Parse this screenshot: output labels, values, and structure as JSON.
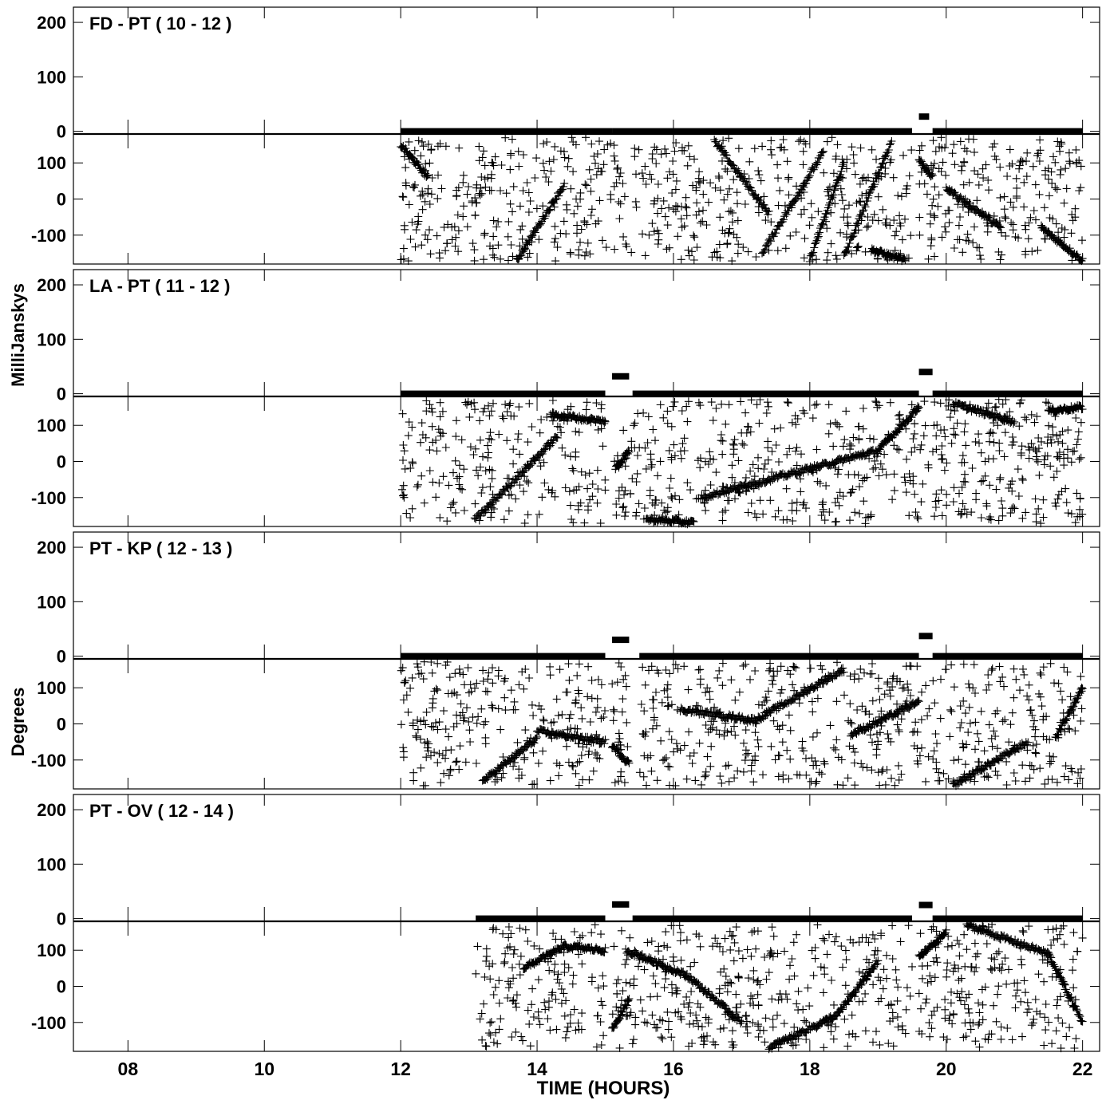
{
  "chart_data": {
    "type": "scatter",
    "xlabel": "TIME (HOURS)",
    "ylabel_amplitude": "MilliJanskys",
    "ylabel_phase": "Degrees",
    "xlim": [
      7.2,
      22.25
    ],
    "x_ticks": [
      8,
      10,
      12,
      14,
      16,
      18,
      20,
      22
    ],
    "x_tick_labels": [
      "08",
      "10",
      "12",
      "14",
      "16",
      "18",
      "20",
      "22"
    ],
    "amplitude_ylim": [
      -5,
      225
    ],
    "amplitude_ticks": [
      0,
      100,
      200
    ],
    "phase_ylim": [
      -180,
      180
    ],
    "phase_ticks": [
      -100,
      0,
      100
    ],
    "panels": [
      {
        "label": "FD - PT ( 10 - 12 )",
        "amplitude_segments": [
          {
            "x_start": 12.0,
            "x_end": 15.1,
            "value": 0
          },
          {
            "x_start": 15.1,
            "x_end": 19.5,
            "value": 0
          },
          {
            "x_start": 19.6,
            "x_end": 19.75,
            "value": 27
          },
          {
            "x_start": 19.8,
            "x_end": 22.0,
            "value": 0
          }
        ],
        "phase_x_range": [
          12.0,
          22.0
        ],
        "phase_tracks": [
          {
            "x": [
              12.0,
              12.4
            ],
            "y": [
              150,
              60
            ]
          },
          {
            "x": [
              13.7,
              14.4
            ],
            "y": [
              -170,
              40
            ]
          },
          {
            "x": [
              16.6,
              17.4
            ],
            "y": [
              160,
              -40
            ]
          },
          {
            "x": [
              17.3,
              18.2
            ],
            "y": [
              -150,
              130
            ]
          },
          {
            "x": [
              18.0,
              18.5
            ],
            "y": [
              -170,
              100
            ]
          },
          {
            "x": [
              18.5,
              19.2
            ],
            "y": [
              -160,
              160
            ]
          },
          {
            "x": [
              19.6,
              19.8
            ],
            "y": [
              110,
              60
            ]
          },
          {
            "x": [
              20.0,
              20.8
            ],
            "y": [
              30,
              -80
            ]
          },
          {
            "x": [
              21.4,
              22.0
            ],
            "y": [
              -80,
              -170
            ]
          },
          {
            "x": [
              18.9,
              19.4
            ],
            "y": [
              -140,
              -170
            ]
          }
        ]
      },
      {
        "label": "LA - PT ( 11 - 12 )",
        "amplitude_segments": [
          {
            "x_start": 12.0,
            "x_end": 15.0,
            "value": 0
          },
          {
            "x_start": 15.1,
            "x_end": 15.35,
            "value": 32
          },
          {
            "x_start": 15.4,
            "x_end": 19.6,
            "value": 0
          },
          {
            "x_start": 19.6,
            "x_end": 19.8,
            "value": 40
          },
          {
            "x_start": 19.8,
            "x_end": 22.0,
            "value": 0
          }
        ],
        "phase_x_range": [
          12.0,
          22.0
        ],
        "phase_tracks": [
          {
            "x": [
              13.1,
              14.3
            ],
            "y": [
              -160,
              70
            ]
          },
          {
            "x": [
              14.2,
              15.0
            ],
            "y": [
              130,
              110
            ]
          },
          {
            "x": [
              15.15,
              15.35
            ],
            "y": [
              -20,
              30
            ]
          },
          {
            "x": [
              16.4,
              17.8
            ],
            "y": [
              -100,
              -30
            ]
          },
          {
            "x": [
              17.8,
              19.0
            ],
            "y": [
              -30,
              30
            ]
          },
          {
            "x": [
              19.0,
              19.6
            ],
            "y": [
              30,
              150
            ]
          },
          {
            "x": [
              20.1,
              21.0
            ],
            "y": [
              160,
              110
            ]
          },
          {
            "x": [
              21.5,
              22.0
            ],
            "y": [
              140,
              150
            ]
          },
          {
            "x": [
              15.6,
              16.3
            ],
            "y": [
              -160,
              -170
            ]
          }
        ]
      },
      {
        "label": "PT - KP ( 12 - 13 )",
        "amplitude_segments": [
          {
            "x_start": 12.0,
            "x_end": 15.0,
            "value": 0
          },
          {
            "x_start": 15.1,
            "x_end": 15.35,
            "value": 30
          },
          {
            "x_start": 15.5,
            "x_end": 19.6,
            "value": 0
          },
          {
            "x_start": 19.6,
            "x_end": 19.8,
            "value": 37
          },
          {
            "x_start": 19.8,
            "x_end": 22.0,
            "value": 0
          }
        ],
        "phase_x_range": [
          12.0,
          22.0
        ],
        "phase_tracks": [
          {
            "x": [
              13.2,
              14.0
            ],
            "y": [
              -160,
              -40
            ]
          },
          {
            "x": [
              14.0,
              15.0
            ],
            "y": [
              -20,
              -50
            ]
          },
          {
            "x": [
              15.1,
              15.35
            ],
            "y": [
              -60,
              -110
            ]
          },
          {
            "x": [
              16.1,
              17.2
            ],
            "y": [
              40,
              10
            ]
          },
          {
            "x": [
              17.2,
              18.5
            ],
            "y": [
              10,
              150
            ]
          },
          {
            "x": [
              18.6,
              19.6
            ],
            "y": [
              -30,
              60
            ]
          },
          {
            "x": [
              20.1,
              21.2
            ],
            "y": [
              -170,
              -50
            ]
          },
          {
            "x": [
              21.6,
              22.0
            ],
            "y": [
              -40,
              100
            ]
          }
        ]
      },
      {
        "label": "PT - OV ( 12 - 14 )",
        "amplitude_segments": [
          {
            "x_start": 13.1,
            "x_end": 15.0,
            "value": 0
          },
          {
            "x_start": 15.1,
            "x_end": 15.35,
            "value": 26
          },
          {
            "x_start": 15.4,
            "x_end": 19.5,
            "value": 0
          },
          {
            "x_start": 19.6,
            "x_end": 19.8,
            "value": 25
          },
          {
            "x_start": 19.8,
            "x_end": 22.0,
            "value": 0
          }
        ],
        "phase_x_range": [
          13.1,
          22.0
        ],
        "phase_tracks": [
          {
            "x": [
              13.8,
              14.4
            ],
            "y": [
              50,
              110
            ]
          },
          {
            "x": [
              14.4,
              15.0
            ],
            "y": [
              110,
              100
            ]
          },
          {
            "x": [
              15.1,
              15.35
            ],
            "y": [
              -120,
              -40
            ]
          },
          {
            "x": [
              15.3,
              16.2
            ],
            "y": [
              100,
              30
            ]
          },
          {
            "x": [
              16.2,
              17.0
            ],
            "y": [
              30,
              -100
            ]
          },
          {
            "x": [
              17.4,
              18.4
            ],
            "y": [
              -170,
              -80
            ]
          },
          {
            "x": [
              18.4,
              19.0
            ],
            "y": [
              -80,
              70
            ]
          },
          {
            "x": [
              19.6,
              20.0
            ],
            "y": [
              80,
              150
            ]
          },
          {
            "x": [
              20.3,
              21.5
            ],
            "y": [
              170,
              90
            ]
          },
          {
            "x": [
              21.5,
              22.0
            ],
            "y": [
              90,
              -100
            ]
          }
        ]
      }
    ]
  }
}
